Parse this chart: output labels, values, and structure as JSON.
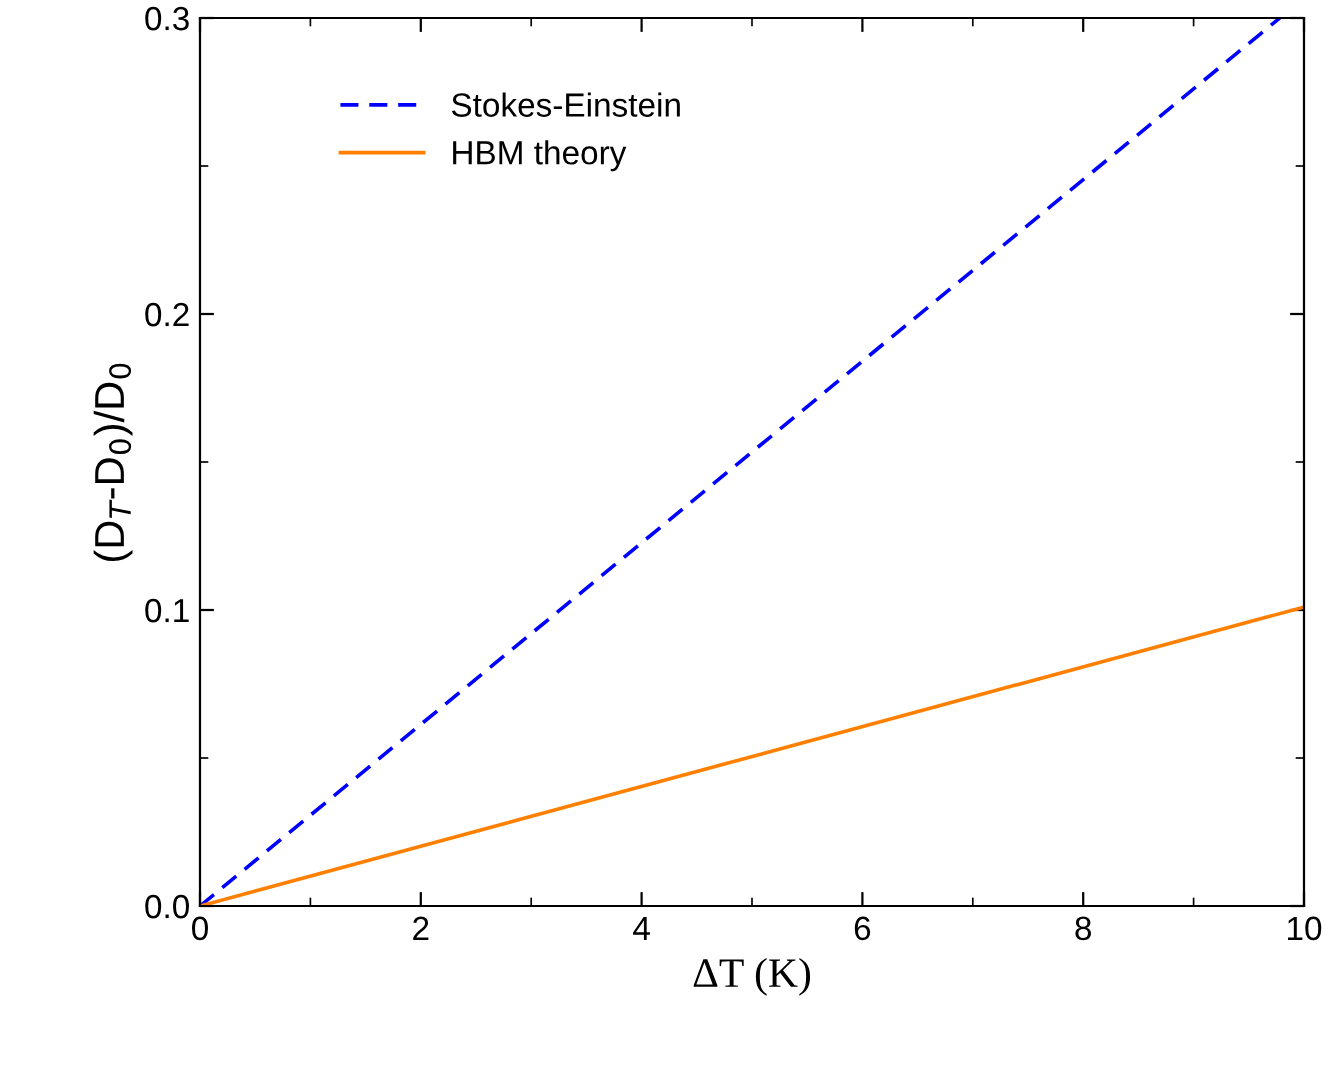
{
  "chart_data": {
    "type": "line",
    "xlabel": "ΔT (K)",
    "ylabel": "(D$_{T}$-D$_{0}$)/D$_{0}$",
    "xlim": [
      0,
      10
    ],
    "ylim": [
      0,
      0.3
    ],
    "xticks": [
      0,
      2,
      4,
      6,
      8,
      10
    ],
    "yticks": [
      {
        "value": 0,
        "label": "0.0"
      },
      0.1,
      0.2,
      0.3
    ],
    "legend": "top left",
    "grid": false,
    "marker": "none",
    "series": [
      {
        "name": "Stokes-Einstein",
        "color": "#0000ff",
        "line_style": "dashed",
        "x": [
          0,
          9.78
        ],
        "values": [
          0,
          0.3
        ]
      },
      {
        "name": "HBM theory",
        "color": "#ff8000",
        "line_style": "solid",
        "x": [
          0,
          10
        ],
        "values": [
          0,
          0.101
        ]
      }
    ]
  }
}
